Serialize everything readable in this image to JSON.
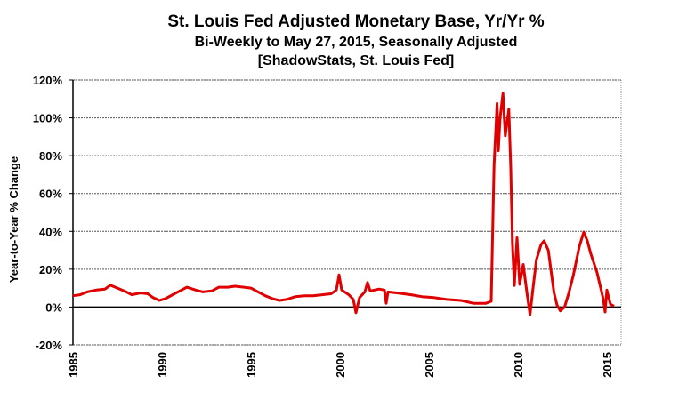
{
  "chart_data": {
    "type": "line",
    "title": "St. Louis Fed Adjusted Monetary Base, Yr/Yr %",
    "subtitle": "Bi-Weekly to May 27, 2015, Seasonally Adjusted",
    "source": "[ShadowStats, St. Louis Fed]",
    "xlabel": "",
    "ylabel": "Year-to-Year % Change",
    "xlim": [
      1985,
      2015.8
    ],
    "ylim": [
      -20,
      120
    ],
    "grid": true,
    "x_ticks": [
      "1985",
      "1990",
      "1995",
      "2000",
      "2005",
      "2010",
      "2015"
    ],
    "y_ticks": [
      "120%",
      "100%",
      "80%",
      "60%",
      "40%",
      "20%",
      "0%",
      "-20%"
    ],
    "series": [
      {
        "name": "Adjusted Monetary Base Yr/Yr %",
        "color": "#e00000",
        "points": [
          [
            1985.0,
            6
          ],
          [
            1985.4,
            6.5
          ],
          [
            1985.8,
            8
          ],
          [
            1986.3,
            9
          ],
          [
            1986.8,
            9.5
          ],
          [
            1987.1,
            11.5
          ],
          [
            1987.5,
            10
          ],
          [
            1988.0,
            8
          ],
          [
            1988.3,
            6.5
          ],
          [
            1988.8,
            7.5
          ],
          [
            1989.2,
            7
          ],
          [
            1989.5,
            5
          ],
          [
            1989.85,
            3.5
          ],
          [
            1990.2,
            4.5
          ],
          [
            1990.7,
            7
          ],
          [
            1991.1,
            9
          ],
          [
            1991.4,
            10.5
          ],
          [
            1991.9,
            9
          ],
          [
            1992.3,
            8
          ],
          [
            1992.8,
            8.5
          ],
          [
            1993.2,
            10.5
          ],
          [
            1993.7,
            10.5
          ],
          [
            1994.1,
            11
          ],
          [
            1994.6,
            10.5
          ],
          [
            1995.0,
            10
          ],
          [
            1995.4,
            8
          ],
          [
            1995.8,
            6
          ],
          [
            1996.2,
            4.5
          ],
          [
            1996.6,
            3.5
          ],
          [
            1997.0,
            4
          ],
          [
            1997.5,
            5.5
          ],
          [
            1998.0,
            6
          ],
          [
            1998.5,
            6
          ],
          [
            1999.0,
            6.5
          ],
          [
            1999.5,
            7
          ],
          [
            1999.8,
            9
          ],
          [
            1999.95,
            17
          ],
          [
            2000.1,
            9
          ],
          [
            2000.5,
            6.5
          ],
          [
            2000.75,
            4
          ],
          [
            2000.9,
            -3
          ],
          [
            2001.1,
            5
          ],
          [
            2001.4,
            8
          ],
          [
            2001.55,
            13
          ],
          [
            2001.7,
            8.5
          ],
          [
            2002.2,
            9.5
          ],
          [
            2002.5,
            9
          ],
          [
            2002.6,
            2
          ],
          [
            2002.7,
            8
          ],
          [
            2003.2,
            7.5
          ],
          [
            2004.0,
            6.5
          ],
          [
            2004.6,
            5.5
          ],
          [
            2005.3,
            5
          ],
          [
            2006.0,
            4
          ],
          [
            2006.8,
            3.5
          ],
          [
            2007.5,
            2
          ],
          [
            2008.2,
            2
          ],
          [
            2008.5,
            3
          ],
          [
            2008.66,
            75
          ],
          [
            2008.83,
            107.6
          ],
          [
            2008.9,
            82.6
          ],
          [
            2009.0,
            100
          ],
          [
            2009.16,
            113
          ],
          [
            2009.29,
            90.5
          ],
          [
            2009.49,
            104.6
          ],
          [
            2009.6,
            73
          ],
          [
            2009.69,
            34
          ],
          [
            2009.8,
            11.4
          ],
          [
            2009.95,
            36.6
          ],
          [
            2010.1,
            12
          ],
          [
            2010.3,
            22.5
          ],
          [
            2010.5,
            8
          ],
          [
            2010.68,
            -4
          ],
          [
            2010.85,
            10
          ],
          [
            2011.04,
            25
          ],
          [
            2011.3,
            33
          ],
          [
            2011.47,
            35
          ],
          [
            2011.71,
            30
          ],
          [
            2011.85,
            20
          ],
          [
            2012.03,
            7.5
          ],
          [
            2012.2,
            1
          ],
          [
            2012.38,
            -2
          ],
          [
            2012.62,
            0
          ],
          [
            2012.85,
            7
          ],
          [
            2013.12,
            17
          ],
          [
            2013.45,
            32
          ],
          [
            2013.7,
            39.6
          ],
          [
            2013.9,
            35
          ],
          [
            2014.1,
            28
          ],
          [
            2014.44,
            18.5
          ],
          [
            2014.68,
            9
          ],
          [
            2014.8,
            4
          ],
          [
            2014.9,
            -2.6
          ],
          [
            2015.0,
            9
          ],
          [
            2015.1,
            5
          ],
          [
            2015.2,
            1.5
          ],
          [
            2015.4,
            0.5
          ]
        ]
      }
    ]
  }
}
